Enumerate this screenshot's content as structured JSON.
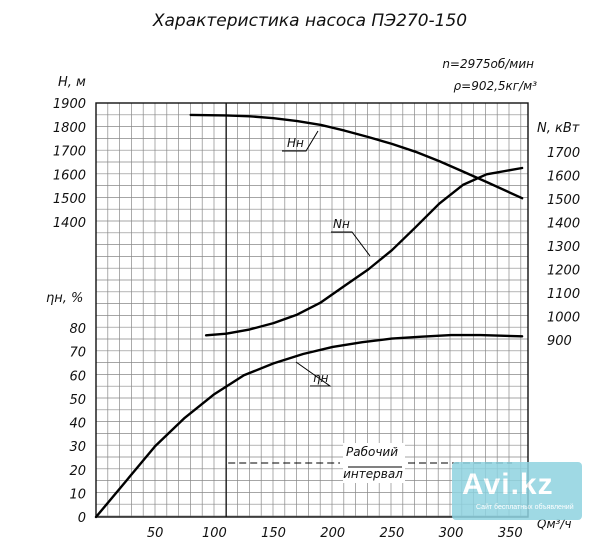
{
  "chart_data": {
    "type": "line",
    "title": "Характеристика насоса ПЭ270-150",
    "params": [
      "n=2975об/мин",
      "ρ=902,5кг/м³"
    ],
    "xlabel": "Qм³/ч",
    "x_ticks": [
      50,
      100,
      150,
      200,
      250,
      300,
      350
    ],
    "xlim": [
      0,
      365
    ],
    "axes": {
      "head": {
        "label": "H, м",
        "ticks": [
          1900,
          1800,
          1700,
          1600,
          1500,
          1400
        ],
        "lim": [
          1400,
          1900
        ]
      },
      "power": {
        "label": "N, кВт",
        "ticks": [
          1700,
          1600,
          1500,
          1400,
          1300,
          1200,
          1100,
          1000,
          900
        ],
        "lim": [
          900,
          1700
        ]
      },
      "eff": {
        "label": "ηн, %",
        "ticks": [
          80,
          70,
          60,
          50,
          40,
          30,
          20,
          10,
          0
        ],
        "lim": [
          0,
          80
        ]
      }
    },
    "series": [
      {
        "name": "Hн",
        "axis": "head",
        "x": [
          80,
          110,
          130,
          150,
          170,
          190,
          210,
          230,
          250,
          270,
          290,
          310,
          330,
          360
        ],
        "y": [
          1850,
          1848,
          1844,
          1836,
          1824,
          1808,
          1784,
          1757,
          1728,
          1695,
          1656,
          1612,
          1568,
          1500
        ]
      },
      {
        "name": "Nн",
        "axis": "power",
        "x": [
          93,
          110,
          130,
          150,
          170,
          190,
          210,
          230,
          250,
          270,
          290,
          310,
          330,
          360
        ],
        "y": [
          920,
          927,
          945,
          972,
          1008,
          1060,
          1130,
          1200,
          1282,
          1380,
          1480,
          1560,
          1605,
          1632
        ]
      },
      {
        "name": "ηн",
        "axis": "eff",
        "x": [
          0,
          25,
          50,
          75,
          100,
          125,
          150,
          175,
          200,
          225,
          250,
          275,
          300,
          325,
          360
        ],
        "y": [
          0,
          15,
          30,
          42,
          52,
          60,
          65,
          69,
          72,
          74,
          75.5,
          76.3,
          77,
          77,
          76.5
        ]
      }
    ],
    "annotation": {
      "line1": "Рабочий",
      "line2": "интервал",
      "range": [
        110,
        360
      ]
    },
    "grid": true
  },
  "watermark": {
    "brand": "Avi.kz",
    "sub": "Сайт бесплатных объявлений"
  }
}
